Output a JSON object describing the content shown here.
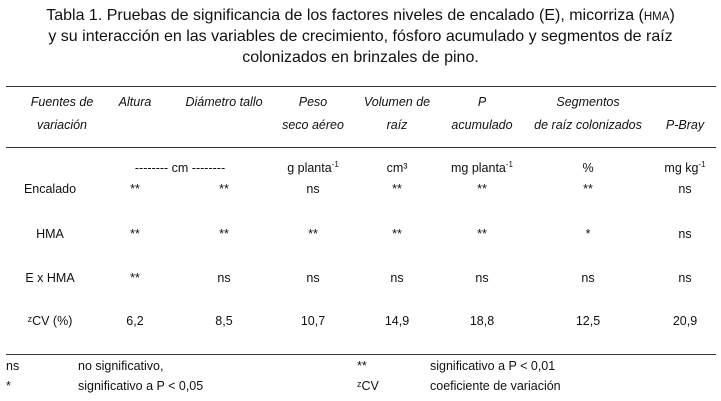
{
  "header": {
    "title": {
      "line1_before": "Tabla 1. Pruebas de significancia de los factores niveles de encalado (E), micorriza (",
      "line1_small": "HMA",
      "line1_after": ")",
      "line2": "y su interacción en las variables de crecimiento, fósforo acumulado y segmentos de raíz",
      "line3": "colonizados en brinzales de pino."
    }
  },
  "table": {
    "columns": [
      {
        "lines": [
          "Fuentes de",
          "variación"
        ]
      },
      {
        "lines": [
          "Altura"
        ]
      },
      {
        "lines": [
          "Diámetro tallo"
        ]
      },
      {
        "lines": [
          "Peso",
          "seco aéreo"
        ]
      },
      {
        "lines": [
          "Volumen de",
          "raíz"
        ]
      },
      {
        "lines": [
          "P",
          "acumulado"
        ]
      },
      {
        "lines": [
          "Segmentos",
          "de raíz colonizados"
        ]
      },
      {
        "lines": [
          "P-Bray"
        ]
      }
    ],
    "units": [
      {
        "text": "-------- cm --------"
      },
      {
        "text": "g planta",
        "sup": "-1"
      },
      {
        "text": "cm³"
      },
      {
        "text": "mg planta",
        "sup": "-1"
      },
      {
        "text": "%"
      },
      {
        "text": "mg kg",
        "sup": "-1"
      }
    ],
    "rows": [
      [
        "Encalado",
        "**",
        "**",
        "ns",
        "**",
        "**",
        "**",
        "ns"
      ],
      [
        "HMA",
        "**",
        "**",
        "**",
        "**",
        "**",
        "*",
        "ns"
      ],
      [
        "E x HMA",
        "**",
        "ns",
        "ns",
        "ns",
        "ns",
        "ns",
        "ns"
      ],
      [
        "ᶻCV (%)",
        "6,2",
        "8,5",
        "10,7",
        "14,9",
        "18,8",
        "12,5",
        "20,9"
      ]
    ]
  },
  "footnotes": [
    [
      "ns",
      "no significativo,",
      "**",
      "significativo a P < 0,01"
    ],
    [
      "*",
      "significativo a P < 0,05",
      "ᶻCV",
      "coeficiente de variación"
    ]
  ]
}
